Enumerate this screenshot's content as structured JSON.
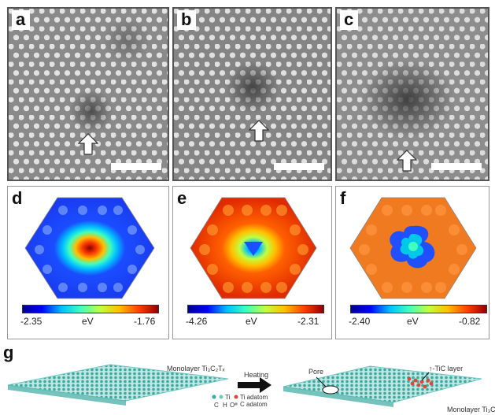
{
  "panels": {
    "a": {
      "label": "a"
    },
    "b": {
      "label": "b"
    },
    "c": {
      "label": "c"
    },
    "d": {
      "label": "d",
      "min": "-2.35",
      "max": "-1.76",
      "unit": "eV"
    },
    "e": {
      "label": "e",
      "min": "-4.26",
      "max": "-2.31",
      "unit": "eV"
    },
    "f": {
      "label": "f",
      "min": "-2.40",
      "max": "-0.82",
      "unit": "eV"
    }
  },
  "schematic": {
    "label": "g",
    "monolayer_left": "Monolayer Ti₃C₂Tₓ",
    "heating": "Heating",
    "pore": "Pore",
    "tic_layer": "↑-TiC layer",
    "monolayer_right": "Monolayer Ti₃C",
    "legend_ti": "Ti",
    "legend_c": "C",
    "legend_h": "H",
    "legend_o": "O",
    "legend_ti_adatom": "Ti adatom",
    "legend_c_adatom": "C adatom"
  },
  "colors": {
    "jet": [
      "#00008f",
      "#0000ff",
      "#00bfff",
      "#40ffbf",
      "#bfff40",
      "#ffbf00",
      "#ff4000",
      "#8f0000"
    ],
    "stem_bg": "#8a8a8a",
    "atom": "#e6e6e6",
    "teal": "#6fc7c2"
  }
}
